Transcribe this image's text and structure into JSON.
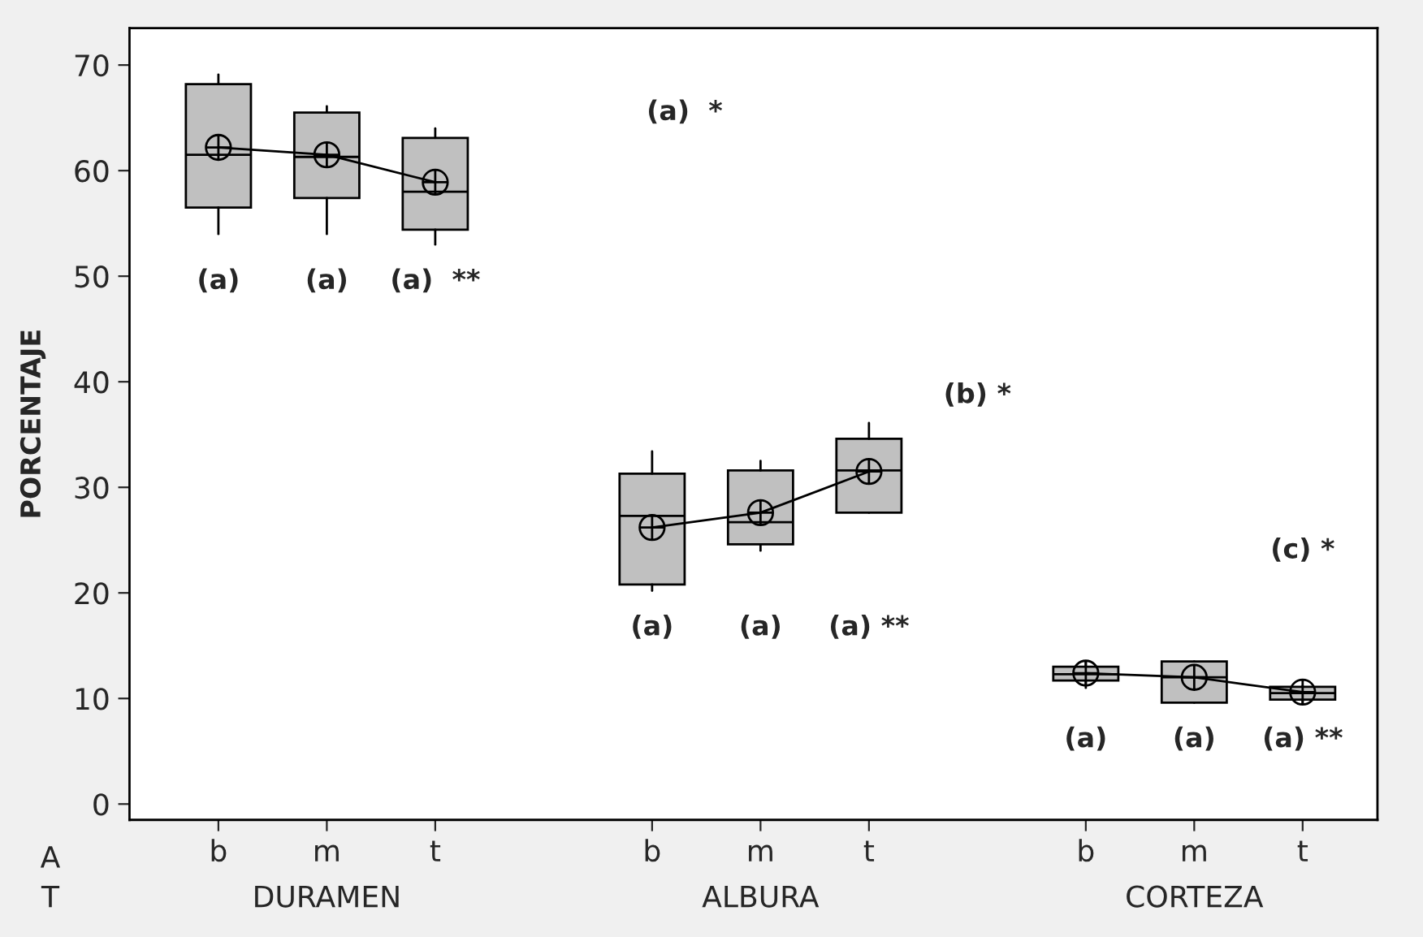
{
  "chart_data": {
    "type": "box",
    "ylabel": "PORCENTAJE",
    "categories": [
      "b",
      "m",
      "t",
      null,
      "b",
      "m",
      "t",
      null,
      "b",
      "m",
      "t"
    ],
    "boxes": [
      {
        "low": 54,
        "q1": 56.5,
        "median": 61.5,
        "q3": 68.2,
        "high": 69.1
      },
      {
        "low": 54,
        "q1": 57.4,
        "median": 61.3,
        "q3": 65.5,
        "high": 66.1
      },
      {
        "low": 53,
        "q1": 54.4,
        "median": 58,
        "q3": 63.1,
        "high": 64
      },
      null,
      {
        "low": 20.2,
        "q1": 20.8,
        "median": 27.3,
        "q3": 31.3,
        "high": 33.4
      },
      {
        "low": 24,
        "q1": 24.6,
        "median": 26.7,
        "q3": 31.6,
        "high": 32.5
      },
      {
        "low": 27.6,
        "q1": 27.6,
        "median": 31.6,
        "q3": 34.6,
        "high": 36.1
      },
      null,
      {
        "low": 11,
        "q1": 11.7,
        "median": 12.3,
        "q3": 13,
        "high": 13.5
      },
      {
        "low": 9.6,
        "q1": 9.6,
        "median": 12,
        "q3": 13.5,
        "high": 13.5
      },
      {
        "low": 9.6,
        "q1": 9.9,
        "median": 10.5,
        "q3": 11.1,
        "high": 11.2
      }
    ],
    "series": [
      {
        "type": "line",
        "color": "#000000",
        "values": [
          62.2,
          61.5,
          58.9,
          null,
          26.2,
          27.6,
          31.5,
          null,
          12.4,
          12,
          10.6
        ]
      }
    ],
    "color": "#c0c0c0",
    "marker": "cross",
    "ylim": [
      -1.5,
      73.5
    ],
    "yticks": [
      0,
      10,
      20,
      30,
      40,
      50,
      60,
      70
    ],
    "grid": false,
    "annotations": [
      "(a)",
      "(a)",
      "(a)  **",
      "(a)",
      "(a)",
      "(a) **",
      "(a)",
      "(a)",
      "(a) **",
      "(a)  *",
      "(b) *",
      "(c) *",
      "A",
      "T",
      "DURAMEN",
      "ALBURA",
      "CORTEZA"
    ]
  }
}
